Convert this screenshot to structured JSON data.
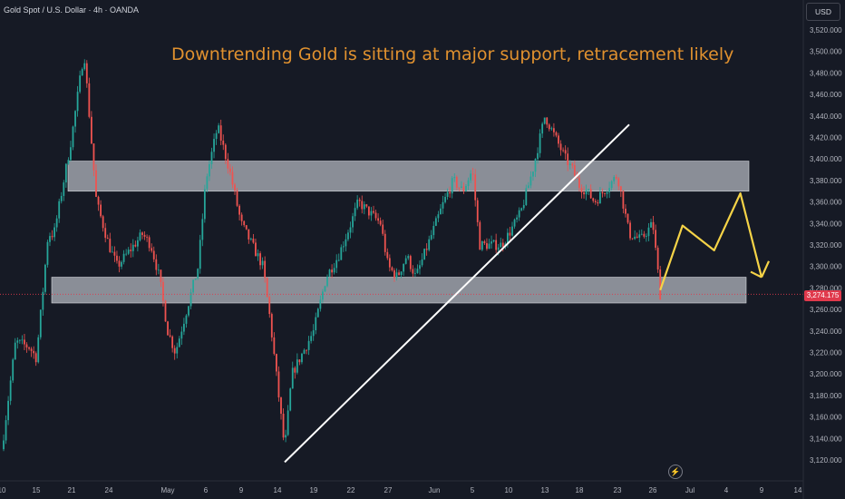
{
  "header": {
    "symbol": "Gold Spot / U.S. Dollar · 4h · OANDA"
  },
  "annotation": {
    "title": "Downtrending Gold is sitting at major support, retracement likely"
  },
  "price_scale": {
    "currency_button": "USD",
    "current_price": "3,274.175"
  },
  "icons": {
    "bolt": "lightning-icon"
  },
  "colors": {
    "up": "#26a69a",
    "down": "#ef5350",
    "zone": "#b2b5be",
    "trendline": "#ffffff",
    "projection": "#f5d347",
    "title": "#e0912f",
    "price_tag": "#e0394c"
  },
  "chart_data": {
    "type": "candlestick",
    "title": "Downtrending Gold is sitting at major support, retracement likely",
    "y_range": [
      3110,
      3530
    ],
    "y_ticks": [
      3120,
      3140,
      3160,
      3180,
      3200,
      3220,
      3240,
      3260,
      3280,
      3300,
      3320,
      3340,
      3360,
      3380,
      3400,
      3420,
      3440,
      3460,
      3480,
      3500,
      3520
    ],
    "y_tick_labels": [
      "3,120.000",
      "3,140.000",
      "3,160.000",
      "3,180.000",
      "3,200.000",
      "3,220.000",
      "3,240.000",
      "3,260.000",
      "3,280.000",
      "3,300.000",
      "3,320.000",
      "3,340.000",
      "3,360.000",
      "3,380.000",
      "3,400.000",
      "3,420.000",
      "3,440.000",
      "3,460.000",
      "3,480.000",
      "3,500.000",
      "3,520.000"
    ],
    "x_tick_labels": [
      "10",
      "15",
      "21",
      "24",
      "May",
      "6",
      "9",
      "14",
      "19",
      "22",
      "27",
      "Jun",
      "5",
      "10",
      "13",
      "18",
      "23",
      "26",
      "Jul",
      "4",
      "9",
      "14"
    ],
    "price_path": [
      {
        "t": "Apr 10",
        "p": 3130
      },
      {
        "t": "Apr 11",
        "p": 3180
      },
      {
        "t": "Apr 12",
        "p": 3230
      },
      {
        "t": "Apr 14",
        "p": 3225
      },
      {
        "t": "Apr 15",
        "p": 3215
      },
      {
        "t": "Apr 16",
        "p": 3270
      },
      {
        "t": "Apr 17",
        "p": 3330
      },
      {
        "t": "Apr 18",
        "p": 3330
      },
      {
        "t": "Apr 21",
        "p": 3420
      },
      {
        "t": "Apr 22",
        "p": 3500
      },
      {
        "t": "Apr 23",
        "p": 3360
      },
      {
        "t": "Apr 24",
        "p": 3320
      },
      {
        "t": "Apr 25",
        "p": 3300
      },
      {
        "t": "Apr 28",
        "p": 3330
      },
      {
        "t": "Apr 29",
        "p": 3320
      },
      {
        "t": "Apr 30",
        "p": 3290
      },
      {
        "t": "May 1",
        "p": 3240
      },
      {
        "t": "May 2",
        "p": 3220
      },
      {
        "t": "May 5",
        "p": 3300
      },
      {
        "t": "May 6",
        "p": 3380
      },
      {
        "t": "May 7",
        "p": 3430
      },
      {
        "t": "May 8",
        "p": 3390
      },
      {
        "t": "May 9",
        "p": 3340
      },
      {
        "t": "May 12",
        "p": 3300
      },
      {
        "t": "May 13",
        "p": 3250
      },
      {
        "t": "May 14",
        "p": 3190
      },
      {
        "t": "May 15",
        "p": 3130
      },
      {
        "t": "May 16",
        "p": 3200
      },
      {
        "t": "May 19",
        "p": 3240
      },
      {
        "t": "May 20",
        "p": 3290
      },
      {
        "t": "May 21",
        "p": 3310
      },
      {
        "t": "May 22",
        "p": 3340
      },
      {
        "t": "May 23",
        "p": 3360
      },
      {
        "t": "May 26",
        "p": 3340
      },
      {
        "t": "May 27",
        "p": 3300
      },
      {
        "t": "May 28",
        "p": 3290
      },
      {
        "t": "May 29",
        "p": 3310
      },
      {
        "t": "May 30",
        "p": 3290
      },
      {
        "t": "Jun 2",
        "p": 3360
      },
      {
        "t": "Jun 3",
        "p": 3380
      },
      {
        "t": "Jun 4",
        "p": 3370
      },
      {
        "t": "Jun 5",
        "p": 3390
      },
      {
        "t": "Jun 6",
        "p": 3320
      },
      {
        "t": "Jun 9",
        "p": 3320
      },
      {
        "t": "Jun 10",
        "p": 3330
      },
      {
        "t": "Jun 11",
        "p": 3350
      },
      {
        "t": "Jun 12",
        "p": 3390
      },
      {
        "t": "Jun 13",
        "p": 3440
      },
      {
        "t": "Jun 16",
        "p": 3400
      },
      {
        "t": "Jun 17",
        "p": 3390
      },
      {
        "t": "Jun 18",
        "p": 3375
      },
      {
        "t": "Jun 19",
        "p": 3370
      },
      {
        "t": "Jun 20",
        "p": 3360
      },
      {
        "t": "Jun 23",
        "p": 3385
      },
      {
        "t": "Jun 24",
        "p": 3330
      },
      {
        "t": "Jun 25",
        "p": 3325
      },
      {
        "t": "Jun 26",
        "p": 3340
      },
      {
        "t": "Jun 27",
        "p": 3274
      }
    ],
    "zones": [
      {
        "name": "resistance",
        "low": 3370,
        "high": 3398
      },
      {
        "name": "support",
        "low": 3266,
        "high": 3290
      }
    ],
    "trendline": {
      "from": {
        "t": "May 15",
        "p": 3118
      },
      "to": {
        "t": "Jun 24",
        "p": 3432
      }
    },
    "projection": [
      {
        "t": "Jun 27",
        "p": 3278
      },
      {
        "t": "Jun 30",
        "p": 3338
      },
      {
        "t": "Jul 3",
        "p": 3315
      },
      {
        "t": "Jul 6",
        "p": 3368
      },
      {
        "t": "Jul 9",
        "p": 3290
      },
      {
        "t": "Jul 10",
        "p": 3305
      }
    ],
    "current_price": 3274.175,
    "grid": false,
    "legend": "none"
  }
}
